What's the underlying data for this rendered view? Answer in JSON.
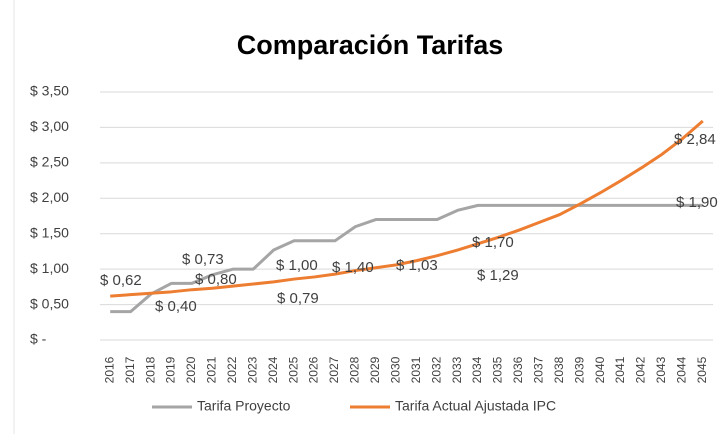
{
  "chart_data": {
    "type": "line",
    "title": "Comparación Tarifas",
    "categories": [
      "2016",
      "2017",
      "2018",
      "2019",
      "2020",
      "2021",
      "2022",
      "2023",
      "2024",
      "2025",
      "2026",
      "2027",
      "2028",
      "2029",
      "2030",
      "2031",
      "2032",
      "2033",
      "2034",
      "2035",
      "2036",
      "2037",
      "2038",
      "2039",
      "2040",
      "2041",
      "2042",
      "2043",
      "2044",
      "2045"
    ],
    "series": [
      {
        "name": "Tarifa Proyecto",
        "color": "#a5a5a5",
        "values": [
          0.4,
          0.4,
          0.65,
          0.8,
          0.8,
          0.92,
          1.0,
          1.0,
          1.27,
          1.4,
          1.4,
          1.4,
          1.6,
          1.7,
          1.7,
          1.7,
          1.7,
          1.83,
          1.9,
          1.9,
          1.9,
          1.9,
          1.9,
          1.9,
          1.9,
          1.9,
          1.9,
          1.9,
          1.9,
          1.9
        ]
      },
      {
        "name": "Tarifa Actual Ajustada IPC",
        "color": "#ed7d31",
        "values": [
          0.62,
          0.64,
          0.66,
          0.68,
          0.71,
          0.73,
          0.76,
          0.79,
          0.82,
          0.86,
          0.89,
          0.93,
          0.98,
          1.02,
          1.06,
          1.12,
          1.19,
          1.27,
          1.36,
          1.45,
          1.55,
          1.66,
          1.77,
          1.92,
          2.08,
          2.25,
          2.43,
          2.62,
          2.84,
          3.09
        ]
      }
    ],
    "ylim": [
      0,
      3.5
    ],
    "yticks": [
      {
        "value": 0,
        "label": "$ -"
      },
      {
        "value": 0.5,
        "label": "$ 0,50"
      },
      {
        "value": 1,
        "label": "$ 1,00"
      },
      {
        "value": 1.5,
        "label": "$ 1,50"
      },
      {
        "value": 2,
        "label": "$ 2,00"
      },
      {
        "value": 2.5,
        "label": "$ 2,50"
      },
      {
        "value": 3,
        "label": "$ 3,00"
      },
      {
        "value": 3.5,
        "label": "$ 3,50"
      }
    ],
    "grid": true,
    "legend": "bottom",
    "annotations": [
      "$ 0,62",
      "$ 0,40",
      "$ 0,73",
      "$ 0,80",
      "$ 1,00",
      "$ 0,79",
      "$ 1,40",
      "$ 1,03",
      "$ 1,70",
      "$ 1,29",
      "$ 1,90",
      "$ 2,84"
    ]
  }
}
